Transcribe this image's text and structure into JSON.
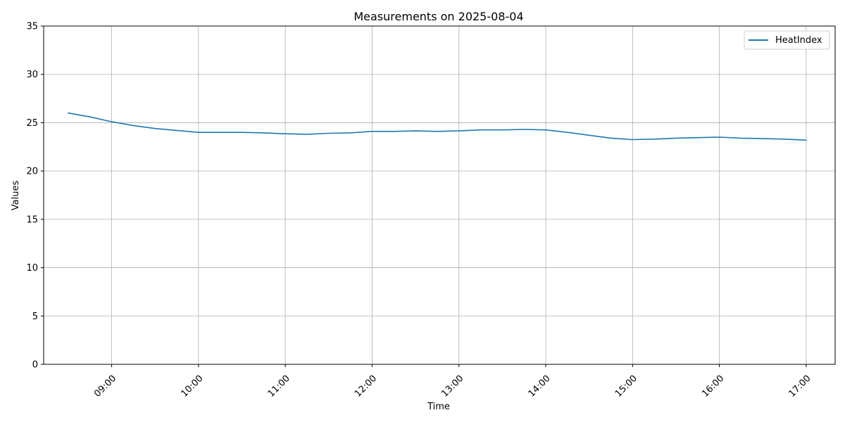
{
  "chart_data": {
    "type": "line",
    "title": "Measurements on 2025-08-04",
    "xlabel": "Time",
    "ylabel": "Values",
    "x_range": [
      "08:13",
      "17:20"
    ],
    "ylim": [
      0,
      35
    ],
    "yticks": [
      0,
      5,
      10,
      15,
      20,
      25,
      30,
      35
    ],
    "xticks": [
      "09:00",
      "10:00",
      "11:00",
      "12:00",
      "13:00",
      "14:00",
      "15:00",
      "16:00",
      "17:00"
    ],
    "grid": true,
    "legend_position": "top-right",
    "series": [
      {
        "name": "HeatIndex",
        "color": "#1f77b4",
        "x": [
          "08:30",
          "08:45",
          "09:00",
          "09:15",
          "09:30",
          "09:45",
          "10:00",
          "10:15",
          "10:30",
          "10:45",
          "11:00",
          "11:15",
          "11:30",
          "11:45",
          "12:00",
          "12:15",
          "12:30",
          "12:45",
          "13:00",
          "13:15",
          "13:30",
          "13:45",
          "14:00",
          "14:15",
          "14:30",
          "14:45",
          "15:00",
          "15:15",
          "15:30",
          "15:45",
          "16:00",
          "16:15",
          "16:30",
          "16:45",
          "17:00"
        ],
        "values": [
          26.0,
          25.6,
          25.1,
          24.7,
          24.4,
          24.2,
          24.0,
          24.0,
          24.0,
          23.95,
          23.85,
          23.8,
          23.9,
          23.95,
          24.1,
          24.1,
          24.15,
          24.1,
          24.15,
          24.25,
          24.25,
          24.3,
          24.25,
          24.0,
          23.7,
          23.4,
          23.25,
          23.3,
          23.4,
          23.45,
          23.5,
          23.4,
          23.35,
          23.3,
          23.2
        ]
      }
    ]
  }
}
